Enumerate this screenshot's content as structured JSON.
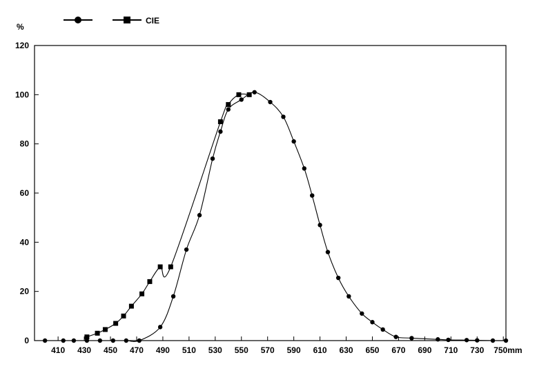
{
  "chart_data": {
    "type": "line",
    "title": "",
    "xlabel": "",
    "ylabel": "",
    "y_unit": "%",
    "x_unit": "mm",
    "xlim": [
      392,
      752
    ],
    "ylim": [
      0,
      120
    ],
    "x_ticks": [
      410,
      430,
      450,
      470,
      490,
      510,
      530,
      550,
      570,
      590,
      610,
      630,
      650,
      670,
      690,
      710,
      730,
      750
    ],
    "x_tick_labels": [
      "410",
      "430",
      "450",
      "470",
      "490",
      "510",
      "530",
      "550",
      "570",
      "590",
      "610",
      "630",
      "650",
      "670",
      "690",
      "710",
      "730",
      "750mm"
    ],
    "y_ticks": [
      0,
      20,
      40,
      60,
      80,
      100,
      120
    ],
    "y_tick_labels": [
      "0",
      "20",
      "40",
      "60",
      "80",
      "100",
      "120"
    ],
    "grid": false,
    "legend": "top-left",
    "series": [
      {
        "name": "",
        "marker": "circle",
        "x": [
          400,
          414,
          422,
          432,
          442,
          452,
          462,
          472,
          488,
          498,
          508,
          518,
          528,
          534,
          540,
          550,
          560,
          572,
          582,
          590,
          598,
          604,
          610,
          616,
          624,
          632,
          642,
          650,
          658,
          668,
          680,
          700,
          708,
          722,
          730,
          742,
          752
        ],
        "y": [
          0,
          0,
          0,
          0,
          0,
          0,
          0,
          0,
          5.5,
          18,
          37,
          51,
          74,
          85,
          94,
          98,
          101,
          97,
          91,
          81,
          70,
          59,
          47,
          36,
          25.5,
          18,
          11,
          7.5,
          4.5,
          1.5,
          1,
          0.5,
          0.3,
          0.2,
          0.1,
          0,
          0
        ]
      },
      {
        "name": "CIE",
        "marker": "square",
        "x": [
          432,
          440,
          446,
          454,
          460,
          466,
          474,
          480,
          488,
          496,
          534,
          540,
          548,
          556
        ],
        "y": [
          1.5,
          3,
          4.5,
          7,
          10,
          14,
          19,
          24,
          30,
          30,
          89,
          96,
          100,
          100
        ]
      }
    ]
  }
}
